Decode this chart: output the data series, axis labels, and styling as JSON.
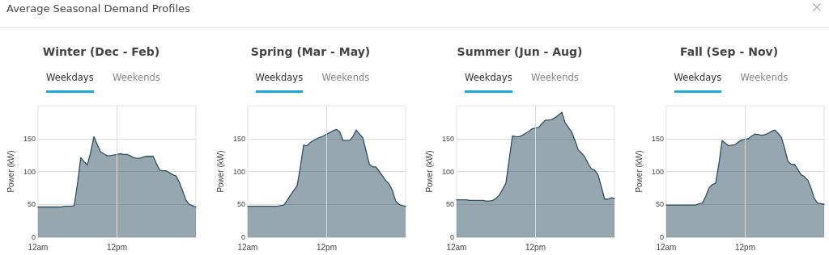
{
  "chart_data": [
    {
      "type": "area",
      "title": "Winter (Dec - Feb)",
      "annotations": [
        "Average Seasonal Demand Profiles",
        "Weekdays",
        "Weekends"
      ],
      "ylabel": "Power (kW)",
      "categories": [
        "12am",
        null,
        null,
        null,
        null,
        null,
        null,
        null,
        null,
        null,
        null,
        null,
        null,
        null,
        null,
        null,
        null,
        null,
        null,
        null,
        null,
        null,
        null,
        null,
        "12pm",
        null,
        null,
        null,
        null,
        null,
        null,
        null,
        null,
        null,
        null,
        null,
        null,
        null,
        null,
        null,
        null,
        null,
        null,
        null,
        null,
        null,
        null,
        null,
        null
      ],
      "ylim": [
        0,
        200
      ],
      "yticks": [
        0,
        50,
        100,
        150
      ],
      "grid": true,
      "marker": "none",
      "line_style": "solid",
      "series": [
        {
          "color": "#2f4f62",
          "values": [
            46,
            46,
            46,
            46,
            46,
            46,
            46,
            46,
            47,
            47,
            47,
            48,
            81,
            121,
            115,
            110,
            129,
            153,
            141,
            130,
            127,
            124,
            124,
            125,
            126,
            127,
            126,
            126,
            124,
            121,
            120,
            120,
            122,
            123,
            123,
            123,
            112,
            102,
            101,
            101,
            98,
            95,
            93,
            83,
            70,
            56,
            50,
            48,
            46
          ]
        }
      ]
    },
    {
      "type": "area",
      "title": "Spring (Mar - May)",
      "annotations": [
        "Weekdays",
        "Weekends"
      ],
      "ylabel": "Power (kW)",
      "categories": [
        "12am",
        null,
        null,
        null,
        null,
        null,
        null,
        null,
        null,
        null,
        null,
        null,
        null,
        null,
        null,
        null,
        null,
        null,
        null,
        null,
        null,
        null,
        null,
        null,
        "12pm",
        null,
        null,
        null,
        null,
        null,
        null,
        null,
        null,
        null,
        null,
        null,
        null,
        null,
        null,
        null,
        null,
        null,
        null,
        null,
        null,
        null,
        null,
        null,
        null
      ],
      "ylim": [
        0,
        200
      ],
      "yticks": [
        0,
        50,
        100,
        150
      ],
      "grid": true,
      "marker": "none",
      "line_style": "solid",
      "series": [
        {
          "color": "#2f4f62",
          "values": [
            47,
            47,
            47,
            47,
            47,
            47,
            47,
            47,
            47,
            47,
            48,
            49,
            56,
            64,
            71,
            78,
            106,
            140,
            139,
            144,
            147,
            150,
            152,
            154,
            157,
            159,
            162,
            164,
            160,
            147,
            147,
            147,
            153,
            163,
            157,
            151,
            131,
            111,
            107,
            107,
            100,
            93,
            86,
            81,
            71,
            55,
            50,
            48,
            47
          ]
        }
      ]
    },
    {
      "type": "area",
      "title": "Summer (Jun - Aug)",
      "annotations": [
        "Weekdays",
        "Weekends"
      ],
      "ylabel": "Power (kW)",
      "categories": [
        "12am",
        null,
        null,
        null,
        null,
        null,
        null,
        null,
        null,
        null,
        null,
        null,
        null,
        null,
        null,
        null,
        null,
        null,
        null,
        null,
        null,
        null,
        null,
        null,
        "12pm",
        null,
        null,
        null,
        null,
        null,
        null,
        null,
        null,
        null,
        null,
        null,
        null,
        null,
        null,
        null,
        null,
        null,
        null,
        null,
        null,
        null,
        null,
        null,
        null
      ],
      "ylim": [
        0,
        200
      ],
      "yticks": [
        0,
        50,
        100,
        150
      ],
      "grid": true,
      "marker": "none",
      "line_style": "solid",
      "series": [
        {
          "color": "#2f4f62",
          "values": [
            57,
            57,
            57,
            57,
            56,
            56,
            56,
            56,
            56,
            55,
            55,
            56,
            59,
            64,
            73,
            82,
            118,
            154,
            153,
            153,
            155,
            158,
            161,
            165,
            166,
            167,
            173,
            178,
            178,
            179,
            182,
            186,
            190,
            174,
            167,
            160,
            147,
            133,
            128,
            122,
            112,
            104,
            102,
            95,
            77,
            58,
            58,
            60,
            59
          ]
        }
      ]
    },
    {
      "type": "area",
      "title": "Fall (Sep - Nov)",
      "annotations": [
        "Weekdays",
        "Weekends"
      ],
      "ylabel": "Power (kW)",
      "categories": [
        "12am",
        null,
        null,
        null,
        null,
        null,
        null,
        null,
        null,
        null,
        null,
        null,
        null,
        null,
        null,
        null,
        null,
        null,
        null,
        null,
        null,
        null,
        null,
        null,
        "12pm",
        null,
        null,
        null,
        null,
        null,
        null,
        null,
        null,
        null,
        null,
        null,
        null,
        null,
        null,
        null,
        null,
        null,
        null,
        null,
        null,
        null,
        null,
        null,
        null
      ],
      "ylim": [
        0,
        200
      ],
      "yticks": [
        0,
        50,
        100,
        150
      ],
      "grid": true,
      "marker": "none",
      "line_style": "solid",
      "series": [
        {
          "color": "#2f4f62",
          "values": [
            49,
            49,
            49,
            49,
            49,
            49,
            49,
            49,
            49,
            49,
            51,
            52,
            62,
            75,
            80,
            82,
            111,
            147,
            143,
            139,
            140,
            141,
            145,
            148,
            149,
            150,
            154,
            157,
            156,
            155,
            156,
            158,
            161,
            163,
            158,
            152,
            135,
            115,
            111,
            111,
            103,
            95,
            92,
            87,
            75,
            59,
            52,
            51,
            50
          ]
        }
      ]
    }
  ]
}
